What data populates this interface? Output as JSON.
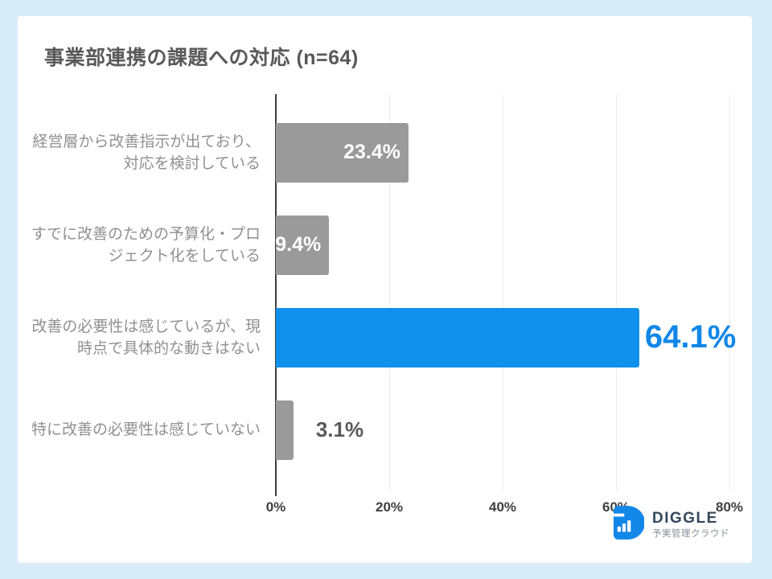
{
  "title": "事業部連携の課題への対応 (n=64)",
  "chart_data": {
    "type": "bar",
    "orientation": "horizontal",
    "title": "事業部連携の課題への対応 (n=64)",
    "categories": [
      "経営層から改善指示が出ており、\n対応を検討している",
      "すでに改善のための予算化・プロ\nジェクト化をしている",
      "改善の必要性は感じているが、現\n時点で具体的な動きはない",
      "特に改善の必要性は感じていない"
    ],
    "values": [
      23.4,
      9.4,
      64.1,
      3.1
    ],
    "value_labels": [
      "23.4%",
      "9.4%",
      "64.1%",
      "3.1%"
    ],
    "value_label_placement": [
      "inside",
      "inside",
      "outside-highlight",
      "outside-plain"
    ],
    "highlight_index": 2,
    "xlim": [
      0,
      80
    ],
    "x_ticks": [
      "0%",
      "20%",
      "40%",
      "60%",
      "80%"
    ],
    "grid": true,
    "legend": false,
    "colors": {
      "background": "#d9ecfa",
      "card": "#ffffff",
      "bar_default": "#9a9a9a",
      "bar_highlight": "#0f90ec",
      "value_inside": "#ffffff",
      "value_highlight": "#1287e8",
      "value_plain": "#595959",
      "axis": "#3f3f3f",
      "gridline": "#ededed",
      "category_label": "#909090"
    }
  },
  "logo": {
    "brand": "DIGGLE",
    "tagline": "予実管理クラウド",
    "icon": "diggle-d-barchart-icon",
    "icon_color": "#1287e8"
  }
}
